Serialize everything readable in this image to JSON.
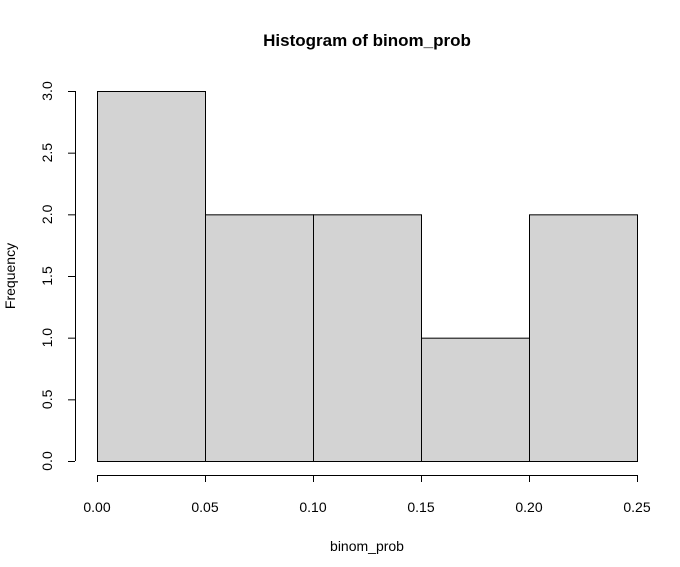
{
  "chart_data": {
    "type": "bar",
    "title": "Histogram of binom_prob",
    "xlabel": "binom_prob",
    "ylabel": "Frequency",
    "bins": [
      {
        "start": 0.0,
        "end": 0.05,
        "count": 3
      },
      {
        "start": 0.05,
        "end": 0.1,
        "count": 2
      },
      {
        "start": 0.1,
        "end": 0.15,
        "count": 2
      },
      {
        "start": 0.15,
        "end": 0.2,
        "count": 1
      },
      {
        "start": 0.2,
        "end": 0.25,
        "count": 2
      }
    ],
    "x_ticks": [
      "0.00",
      "0.05",
      "0.10",
      "0.15",
      "0.20",
      "0.25"
    ],
    "y_ticks": [
      "0.0",
      "0.5",
      "1.0",
      "1.5",
      "2.0",
      "2.5",
      "3.0"
    ],
    "xlim": [
      0,
      0.25
    ],
    "ylim": [
      0,
      3
    ],
    "bar_color": "#d3d3d3",
    "grid": false
  }
}
